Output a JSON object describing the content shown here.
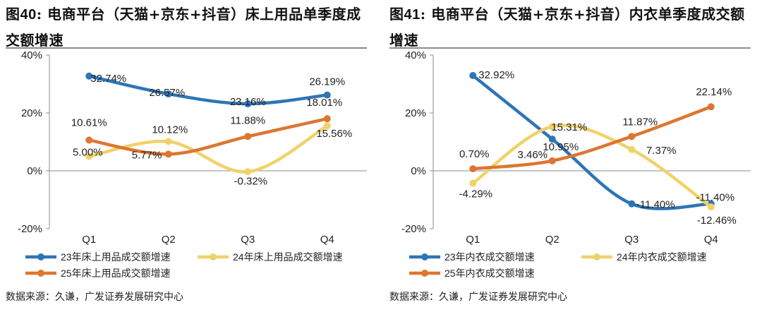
{
  "chart_data": [
    {
      "type": "line",
      "title_prefix": "图",
      "title_num": "40",
      "title_suffix": ": 电商平台（天猫+京东+抖音）床上用品单季度成交额增速",
      "categories": [
        "Q1",
        "Q2",
        "Q3",
        "Q4"
      ],
      "ylim": [
        -20,
        40
      ],
      "yticks": [
        -20,
        0,
        20,
        40
      ],
      "ytick_labels": [
        "-20%",
        "0%",
        "20%",
        "40%"
      ],
      "series": [
        {
          "name": "23年床上用品成交额增速",
          "color": "#2e75b6",
          "values": [
            32.74,
            26.57,
            23.16,
            26.19
          ],
          "labels": [
            "32.74%",
            "26.57%",
            "23.16%",
            "26.19%"
          ]
        },
        {
          "name": "24年床上用品成交额增速",
          "color": "#f0d26a",
          "values": [
            5.0,
            10.12,
            -0.32,
            15.56
          ],
          "labels": [
            "5.00%",
            "10.12%",
            "-0.32%",
            "15.56%"
          ]
        },
        {
          "name": "25年床上用品成交额增速",
          "color": "#dd7631",
          "values": [
            10.61,
            5.77,
            11.88,
            18.01
          ],
          "labels": [
            "10.61%",
            "5.77%",
            "11.88%",
            "18.01%"
          ]
        }
      ],
      "source": "数据来源：久谦，广发证券发展研究中心"
    },
    {
      "type": "line",
      "title_prefix": "图",
      "title_num": "41",
      "title_suffix": ": 电商平台（天猫+京东+抖音）内衣单季度成交额增速",
      "categories": [
        "Q1",
        "Q2",
        "Q3",
        "Q4"
      ],
      "ylim": [
        -20,
        40
      ],
      "yticks": [
        -20,
        0,
        20,
        40
      ],
      "ytick_labels": [
        "-20%",
        "0%",
        "20%",
        "40%"
      ],
      "series": [
        {
          "name": "23年内衣成交额增速",
          "color": "#2e75b6",
          "values": [
            32.92,
            10.95,
            -11.4,
            -11.4
          ],
          "labels": [
            "32.92%",
            "10.95%",
            "-11.40%",
            "-11.40%"
          ]
        },
        {
          "name": "24年内衣成交额增速",
          "color": "#f0d26a",
          "values": [
            -4.29,
            15.31,
            7.37,
            -12.46
          ],
          "labels": [
            "-4.29%",
            "15.31%",
            "7.37%",
            "-12.46%"
          ]
        },
        {
          "name": "25年内衣成交额增速",
          "color": "#dd7631",
          "values": [
            0.7,
            3.46,
            11.87,
            22.14
          ],
          "labels": [
            "0.70%",
            "3.46%",
            "11.87%",
            "22.14%"
          ]
        }
      ],
      "source": "数据来源：久谦，广发证券发展研究中心"
    }
  ]
}
